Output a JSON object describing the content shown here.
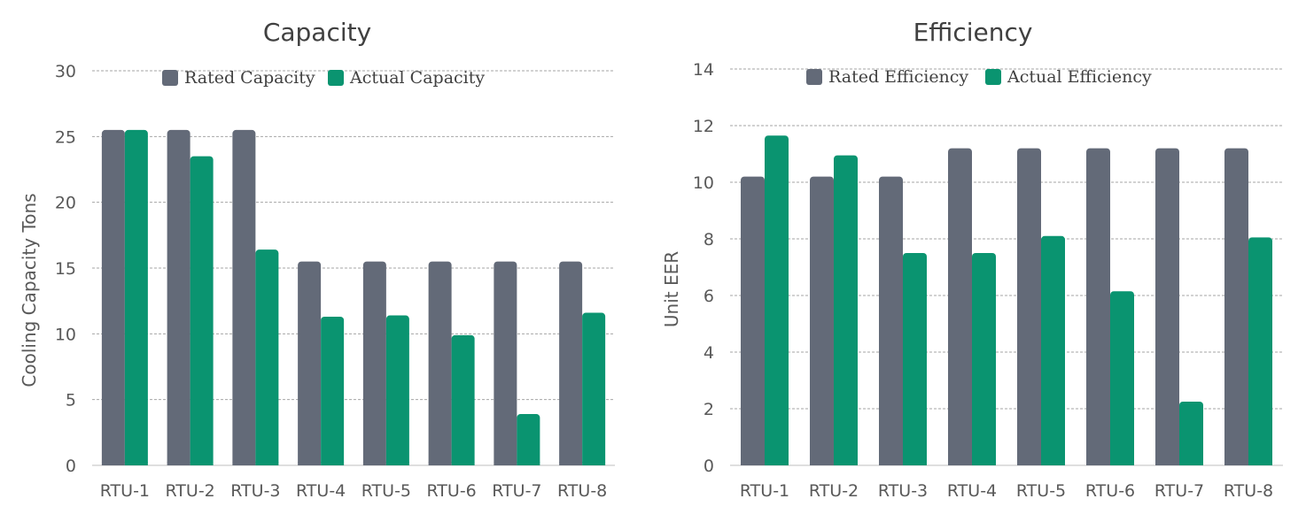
{
  "chart_data": [
    {
      "type": "bar",
      "title": "Capacity",
      "xlabel": "",
      "ylabel": "Cooling Capacity Tons",
      "ylim": [
        0,
        30
      ],
      "yticks": [
        0,
        5,
        10,
        15,
        20,
        25,
        30
      ],
      "grid": true,
      "legend_position": "top",
      "categories": [
        "RTU-1",
        "RTU-2",
        "RTU-3",
        "RTU-4",
        "RTU-5",
        "RTU-6",
        "RTU-7",
        "RTU-8"
      ],
      "series": [
        {
          "name": "Rated Capacity",
          "color": "#636a78",
          "values": [
            25.5,
            25.5,
            25.5,
            15.5,
            15.5,
            15.5,
            15.5,
            15.5
          ]
        },
        {
          "name": "Actual Capacity",
          "color": "#0a9470",
          "values": [
            25.5,
            23.5,
            16.4,
            11.3,
            11.4,
            9.9,
            3.9,
            11.6
          ]
        }
      ]
    },
    {
      "type": "bar",
      "title": "Efficiency",
      "xlabel": "",
      "ylabel": "Unit EER",
      "ylim": [
        0,
        14
      ],
      "yticks": [
        0,
        2,
        4,
        6,
        8,
        10,
        12,
        14
      ],
      "grid": true,
      "legend_position": "top",
      "categories": [
        "RTU-1",
        "RTU-2",
        "RTU-3",
        "RTU-4",
        "RTU-5",
        "RTU-6",
        "RTU-7",
        "RTU-8"
      ],
      "series": [
        {
          "name": "Rated Efficiency",
          "color": "#636a78",
          "values": [
            10.2,
            10.2,
            10.2,
            11.2,
            11.2,
            11.2,
            11.2,
            11.2
          ]
        },
        {
          "name": "Actual Efficiency",
          "color": "#0a9470",
          "values": [
            11.65,
            10.95,
            7.5,
            7.5,
            8.1,
            6.15,
            2.25,
            8.05
          ]
        }
      ]
    }
  ]
}
